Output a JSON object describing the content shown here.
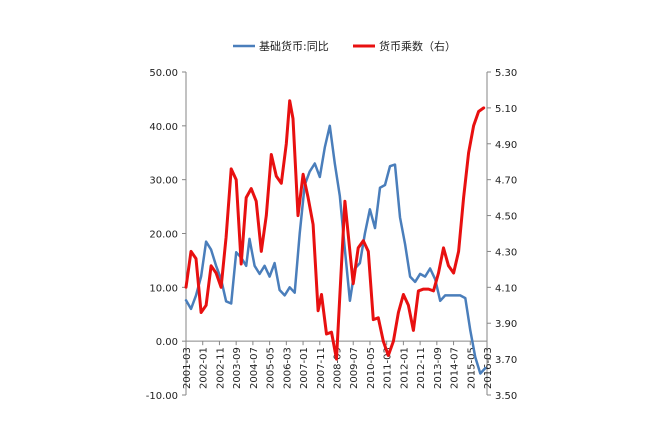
{
  "chart_data": {
    "type": "line",
    "title": "",
    "xlabel": "",
    "ylabel": "",
    "legend_position": "top",
    "grid": false,
    "y_left": {
      "ylim": [
        -10,
        50
      ],
      "ticks": [
        "-10.00",
        "0.00",
        "10.00",
        "20.00",
        "30.00",
        "40.00",
        "50.00"
      ]
    },
    "y_right": {
      "ylim": [
        3.5,
        5.3
      ],
      "ticks": [
        "3.50",
        "3.70",
        "3.90",
        "4.10",
        "4.30",
        "4.50",
        "4.70",
        "4.90",
        "5.10",
        "5.30"
      ]
    },
    "x_ticks": [
      "2001-03",
      "2002-01",
      "2002-11",
      "2003-09",
      "2004-07",
      "2005-05",
      "2006-03",
      "2007-01",
      "2007-11",
      "2008-09",
      "2009-07",
      "2010-05",
      "2011-03",
      "2012-01",
      "2012-11",
      "2013-09",
      "2014-07",
      "2015-05",
      "2016-03"
    ],
    "series": [
      {
        "name": "基础货币:同比",
        "axis": "left",
        "color": "#4a7ebb",
        "points": [
          [
            "2001-03",
            7.6
          ],
          [
            "2001-06",
            6.0
          ],
          [
            "2001-09",
            8.5
          ],
          [
            "2001-12",
            12.0
          ],
          [
            "2002-03",
            18.5
          ],
          [
            "2002-06",
            17.0
          ],
          [
            "2002-09",
            14.0
          ],
          [
            "2002-12",
            11.5
          ],
          [
            "2003-03",
            7.4
          ],
          [
            "2003-06",
            7.0
          ],
          [
            "2003-09",
            16.5
          ],
          [
            "2003-12",
            15.5
          ],
          [
            "2004-03",
            14.0
          ],
          [
            "2004-05",
            19.0
          ],
          [
            "2004-08",
            14.0
          ],
          [
            "2004-11",
            12.5
          ],
          [
            "2005-02",
            14.0
          ],
          [
            "2005-05",
            12.0
          ],
          [
            "2005-08",
            14.5
          ],
          [
            "2005-11",
            9.5
          ],
          [
            "2006-02",
            8.5
          ],
          [
            "2006-05",
            10.0
          ],
          [
            "2006-08",
            9.0
          ],
          [
            "2006-11",
            20.0
          ],
          [
            "2007-02",
            29.0
          ],
          [
            "2007-05",
            31.5
          ],
          [
            "2007-08",
            33.0
          ],
          [
            "2007-11",
            30.5
          ],
          [
            "2008-02",
            36.0
          ],
          [
            "2008-05",
            40.0
          ],
          [
            "2008-08",
            33.0
          ],
          [
            "2008-11",
            27.0
          ],
          [
            "2009-02",
            17.0
          ],
          [
            "2009-05",
            7.5
          ],
          [
            "2009-08",
            13.5
          ],
          [
            "2009-11",
            14.5
          ],
          [
            "2010-02",
            20.0
          ],
          [
            "2010-05",
            24.5
          ],
          [
            "2010-08",
            21.0
          ],
          [
            "2010-11",
            28.5
          ],
          [
            "2011-02",
            29.0
          ],
          [
            "2011-05",
            32.5
          ],
          [
            "2011-08",
            32.8
          ],
          [
            "2011-11",
            23.0
          ],
          [
            "2012-02",
            18.0
          ],
          [
            "2012-05",
            12.0
          ],
          [
            "2012-08",
            11.0
          ],
          [
            "2012-11",
            12.5
          ],
          [
            "2013-02",
            12.0
          ],
          [
            "2013-05",
            13.5
          ],
          [
            "2013-08",
            11.5
          ],
          [
            "2013-11",
            7.5
          ],
          [
            "2014-02",
            8.5
          ],
          [
            "2014-05",
            8.5
          ],
          [
            "2014-08",
            8.5
          ],
          [
            "2014-11",
            8.5
          ],
          [
            "2015-02",
            8.0
          ],
          [
            "2015-05",
            2.0
          ],
          [
            "2015-08",
            -3.0
          ],
          [
            "2015-11",
            -6.0
          ],
          [
            "2016-02",
            -5.0
          ]
        ]
      },
      {
        "name": "货币乘数（右）",
        "axis": "right",
        "color": "#e81010",
        "points": [
          [
            "2001-03",
            4.1
          ],
          [
            "2001-06",
            4.3
          ],
          [
            "2001-09",
            4.26
          ],
          [
            "2001-12",
            3.96
          ],
          [
            "2002-03",
            4.0
          ],
          [
            "2002-06",
            4.22
          ],
          [
            "2002-09",
            4.18
          ],
          [
            "2002-12",
            4.1
          ],
          [
            "2003-03",
            4.38
          ],
          [
            "2003-06",
            4.76
          ],
          [
            "2003-09",
            4.7
          ],
          [
            "2003-12",
            4.23
          ],
          [
            "2004-03",
            4.6
          ],
          [
            "2004-06",
            4.65
          ],
          [
            "2004-09",
            4.58
          ],
          [
            "2004-12",
            4.3
          ],
          [
            "2005-03",
            4.5
          ],
          [
            "2005-06",
            4.84
          ],
          [
            "2005-09",
            4.72
          ],
          [
            "2005-12",
            4.68
          ],
          [
            "2006-03",
            4.9
          ],
          [
            "2006-05",
            5.14
          ],
          [
            "2006-07",
            5.04
          ],
          [
            "2006-10",
            4.5
          ],
          [
            "2007-01",
            4.73
          ],
          [
            "2007-04",
            4.6
          ],
          [
            "2007-07",
            4.45
          ],
          [
            "2007-10",
            3.97
          ],
          [
            "2007-12",
            4.06
          ],
          [
            "2008-03",
            3.84
          ],
          [
            "2008-06",
            3.85
          ],
          [
            "2008-09",
            3.7
          ],
          [
            "2008-11",
            4.05
          ],
          [
            "2009-02",
            4.58
          ],
          [
            "2009-05",
            4.3
          ],
          [
            "2009-07",
            4.12
          ],
          [
            "2009-10",
            4.32
          ],
          [
            "2010-01",
            4.36
          ],
          [
            "2010-04",
            4.3
          ],
          [
            "2010-07",
            3.92
          ],
          [
            "2010-10",
            3.93
          ],
          [
            "2011-01",
            3.8
          ],
          [
            "2011-04",
            3.72
          ],
          [
            "2011-07",
            3.8
          ],
          [
            "2011-10",
            3.96
          ],
          [
            "2012-01",
            4.06
          ],
          [
            "2012-04",
            4.0
          ],
          [
            "2012-07",
            3.86
          ],
          [
            "2012-10",
            4.08
          ],
          [
            "2013-01",
            4.09
          ],
          [
            "2013-04",
            4.09
          ],
          [
            "2013-07",
            4.08
          ],
          [
            "2013-10",
            4.18
          ],
          [
            "2014-01",
            4.32
          ],
          [
            "2014-04",
            4.22
          ],
          [
            "2014-07",
            4.18
          ],
          [
            "2014-10",
            4.3
          ],
          [
            "2015-01",
            4.6
          ],
          [
            "2015-04",
            4.85
          ],
          [
            "2015-07",
            5.0
          ],
          [
            "2015-10",
            5.08
          ],
          [
            "2016-01",
            5.1
          ]
        ]
      }
    ]
  }
}
